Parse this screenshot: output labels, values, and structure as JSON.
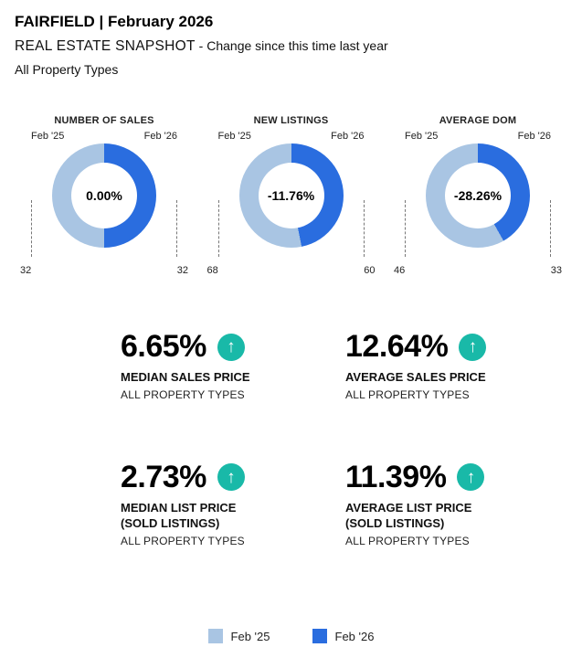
{
  "header": {
    "title": "FAIRFIELD | February 2026",
    "snapshot": "REAL ESTATE SNAPSHOT",
    "snapshot_note": " - Change since this time last year",
    "property_types": "All Property Types"
  },
  "colors": {
    "feb25": "#a9c5e3",
    "feb26": "#2a6ddf",
    "arrow": "#19b9a8"
  },
  "arrow_glyph": "↑",
  "chart_data": [
    {
      "type": "pie",
      "title": "NUMBER OF SALES",
      "center_label": "0.00%",
      "categories": [
        "Feb '25",
        "Feb '26"
      ],
      "values": [
        32,
        32
      ],
      "left_label": "Feb '25",
      "right_label": "Feb '26",
      "left_value": "32",
      "right_value": "32"
    },
    {
      "type": "pie",
      "title": "NEW LISTINGS",
      "center_label": "-11.76%",
      "categories": [
        "Feb '25",
        "Feb '26"
      ],
      "values": [
        68,
        60
      ],
      "left_label": "Feb '25",
      "right_label": "Feb '26",
      "left_value": "68",
      "right_value": "60"
    },
    {
      "type": "pie",
      "title": "AVERAGE DOM",
      "center_label": "-28.26%",
      "categories": [
        "Feb '25",
        "Feb '26"
      ],
      "values": [
        46,
        33
      ],
      "left_label": "Feb '25",
      "right_label": "Feb '26",
      "left_value": "46",
      "right_value": "33"
    }
  ],
  "stats": [
    {
      "value": "6.65%",
      "label": "MEDIAN SALES PRICE",
      "sub": "ALL PROPERTY TYPES"
    },
    {
      "value": "12.64%",
      "label": "AVERAGE SALES PRICE",
      "sub": "ALL PROPERTY TYPES"
    },
    {
      "value": "2.73%",
      "label": "MEDIAN LIST PRICE\n(SOLD LISTINGS)",
      "sub": "ALL PROPERTY TYPES"
    },
    {
      "value": "11.39%",
      "label": "AVERAGE LIST PRICE\n(SOLD LISTINGS)",
      "sub": "ALL PROPERTY TYPES"
    }
  ],
  "legend": {
    "items": [
      {
        "label": "Feb '25",
        "color": "feb25"
      },
      {
        "label": "Feb '26",
        "color": "feb26"
      }
    ]
  }
}
